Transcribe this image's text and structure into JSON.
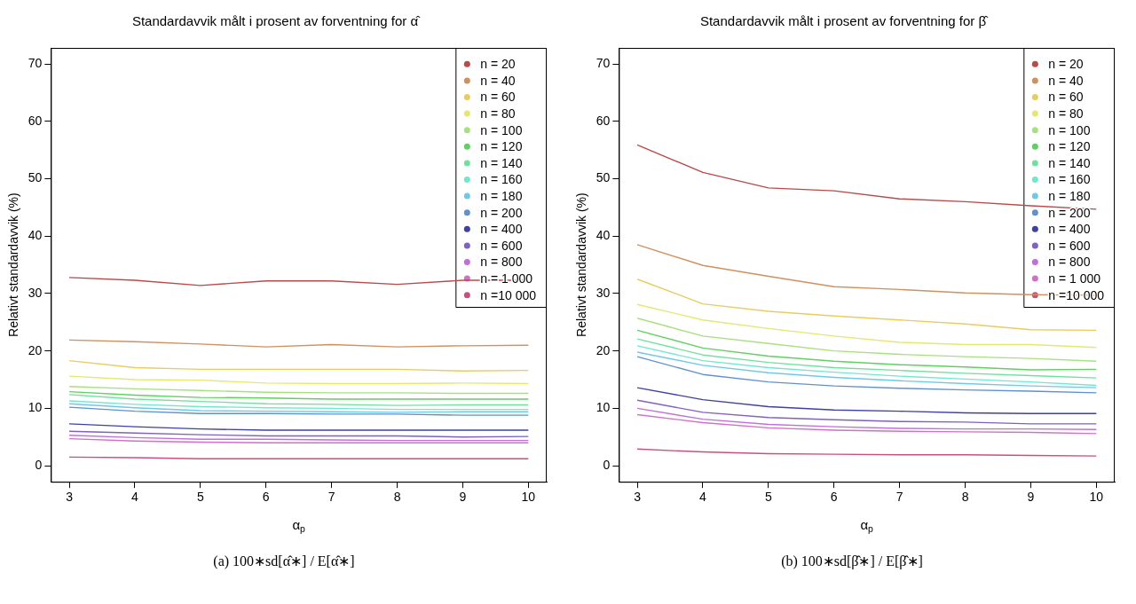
{
  "chart_data": [
    {
      "type": "line",
      "title": "Standardavvik målt i prosent av forventning for α̂",
      "xlabel": "α$_{p}$",
      "ylabel": "Relativt standardavvik (%)",
      "annotations": [
        "(a) 100∗sd[α̂∗] / E[α̂∗]"
      ],
      "x": [
        3,
        4,
        5,
        6,
        7,
        8,
        9,
        10
      ],
      "xlim": [
        2.72,
        10.28
      ],
      "xticks": [
        3,
        4,
        5,
        6,
        7,
        8,
        9,
        10
      ],
      "ylim": [
        -2.8,
        72.8
      ],
      "yticks": [
        0,
        10,
        20,
        30,
        40,
        50,
        60,
        70
      ],
      "grid": false,
      "legend": "top right",
      "marker": "none",
      "line_style": "solid",
      "series": [
        {
          "name": "n = 20",
          "color": "#b84a4a",
          "values": [
            32.8,
            32.3,
            31.4,
            32.2,
            32.2,
            31.6,
            32.3,
            32.3
          ]
        },
        {
          "name": "n = 40",
          "color": "#d09060",
          "values": [
            21.9,
            21.6,
            21.2,
            20.7,
            21.1,
            20.7,
            20.9,
            21.0
          ]
        },
        {
          "name": "n = 60",
          "color": "#e8cc60",
          "values": [
            18.3,
            17.1,
            16.8,
            16.8,
            16.8,
            16.8,
            16.5,
            16.6
          ]
        },
        {
          "name": "n = 80",
          "color": "#e4e870",
          "values": [
            15.6,
            15.0,
            14.9,
            14.4,
            14.3,
            14.3,
            14.4,
            14.3
          ]
        },
        {
          "name": "n = 100",
          "color": "#a8e080",
          "values": [
            13.8,
            13.4,
            13.1,
            12.8,
            12.7,
            12.7,
            12.6,
            12.6
          ]
        },
        {
          "name": "n = 120",
          "color": "#60d060",
          "values": [
            12.9,
            12.3,
            11.9,
            11.8,
            11.6,
            11.6,
            11.6,
            11.6
          ]
        },
        {
          "name": "n = 140",
          "color": "#70e0a0",
          "values": [
            12.4,
            11.6,
            11.2,
            10.8,
            10.7,
            10.5,
            10.6,
            10.6
          ]
        },
        {
          "name": "n = 160",
          "color": "#70e8d0",
          "values": [
            11.3,
            10.7,
            10.3,
            10.1,
            10.0,
            9.8,
            9.8,
            9.8
          ]
        },
        {
          "name": "n = 180",
          "color": "#70c8e8",
          "values": [
            10.8,
            10.1,
            9.6,
            9.5,
            9.4,
            9.3,
            9.4,
            9.4
          ]
        },
        {
          "name": "n = 200",
          "color": "#6090d0",
          "values": [
            10.2,
            9.5,
            9.1,
            9.1,
            9.0,
            9.0,
            8.8,
            8.8
          ]
        },
        {
          "name": "n = 400",
          "color": "#4040a0",
          "values": [
            7.3,
            6.8,
            6.4,
            6.2,
            6.2,
            6.2,
            6.2,
            6.2
          ]
        },
        {
          "name": "n = 600",
          "color": "#8060c0",
          "values": [
            6.0,
            5.7,
            5.4,
            5.2,
            5.2,
            5.2,
            5.0,
            5.1
          ]
        },
        {
          "name": "n = 800",
          "color": "#c070d8",
          "values": [
            5.3,
            4.9,
            4.6,
            4.6,
            4.5,
            4.4,
            4.4,
            4.4
          ]
        },
        {
          "name": "n = 1 000",
          "color": "#d070c8",
          "values": [
            4.7,
            4.3,
            4.1,
            4.0,
            4.0,
            4.0,
            4.0,
            4.0
          ]
        },
        {
          "name": "n =10 000",
          "color": "#c85080",
          "values": [
            1.5,
            1.4,
            1.2,
            1.2,
            1.2,
            1.2,
            1.2,
            1.2
          ]
        }
      ]
    },
    {
      "type": "line",
      "title": "Standardavvik målt i prosent av forventning for β̂",
      "xlabel": "α$_{p}$",
      "ylabel": "Relativt standardavvik (%)",
      "annotations": [
        "(b) 100∗sd[β̂∗] / E[β̂∗]"
      ],
      "x": [
        3,
        4,
        5,
        6,
        7,
        8,
        9,
        10
      ],
      "xlim": [
        2.72,
        10.28
      ],
      "xticks": [
        3,
        4,
        5,
        6,
        7,
        8,
        9,
        10
      ],
      "ylim": [
        -2.8,
        72.8
      ],
      "yticks": [
        0,
        10,
        20,
        30,
        40,
        50,
        60,
        70
      ],
      "grid": false,
      "legend": "top right",
      "marker": "none",
      "line_style": "solid",
      "series": [
        {
          "name": "n = 20",
          "color": "#b84a4a",
          "values": [
            55.9,
            51.1,
            48.4,
            47.9,
            46.5,
            46.0,
            45.3,
            44.7
          ]
        },
        {
          "name": "n = 40",
          "color": "#d09060",
          "values": [
            38.5,
            34.9,
            33.0,
            31.2,
            30.7,
            30.1,
            29.8,
            29.7
          ]
        },
        {
          "name": "n = 60",
          "color": "#e8cc60",
          "values": [
            32.5,
            28.2,
            26.9,
            26.1,
            25.4,
            24.7,
            23.7,
            23.6
          ]
        },
        {
          "name": "n = 80",
          "color": "#e4e870",
          "values": [
            28.1,
            25.4,
            23.9,
            22.6,
            21.5,
            21.1,
            21.1,
            20.6
          ]
        },
        {
          "name": "n = 100",
          "color": "#a8e080",
          "values": [
            25.7,
            22.6,
            21.3,
            20.0,
            19.4,
            19.0,
            18.7,
            18.2
          ]
        },
        {
          "name": "n = 120",
          "color": "#60d060",
          "values": [
            23.6,
            20.5,
            19.1,
            18.2,
            17.6,
            17.2,
            16.7,
            16.8
          ]
        },
        {
          "name": "n = 140",
          "color": "#70e0a0",
          "values": [
            22.1,
            19.3,
            18.0,
            17.1,
            16.6,
            16.1,
            15.7,
            15.3
          ]
        },
        {
          "name": "n = 160",
          "color": "#70e8d0",
          "values": [
            20.9,
            18.3,
            17.1,
            16.3,
            15.6,
            15.1,
            14.6,
            14.0
          ]
        },
        {
          "name": "n = 180",
          "color": "#70c8e8",
          "values": [
            19.8,
            17.5,
            16.2,
            15.4,
            14.8,
            14.3,
            13.9,
            13.6
          ]
        },
        {
          "name": "n = 200",
          "color": "#6090d0",
          "values": [
            19.0,
            15.9,
            14.6,
            13.9,
            13.5,
            13.2,
            13.0,
            12.7
          ]
        },
        {
          "name": "n = 400",
          "color": "#4040a0",
          "values": [
            13.6,
            11.5,
            10.3,
            9.7,
            9.5,
            9.2,
            9.1,
            9.1
          ]
        },
        {
          "name": "n = 600",
          "color": "#8060c0",
          "values": [
            11.4,
            9.3,
            8.4,
            8.0,
            7.7,
            7.6,
            7.3,
            7.3
          ]
        },
        {
          "name": "n = 800",
          "color": "#c070d8",
          "values": [
            10.0,
            8.1,
            7.2,
            6.8,
            6.5,
            6.4,
            6.4,
            6.3
          ]
        },
        {
          "name": "n = 1 000",
          "color": "#d070c8",
          "values": [
            8.9,
            7.5,
            6.6,
            6.2,
            6.0,
            5.9,
            5.8,
            5.6
          ]
        },
        {
          "name": "n =10 000",
          "color": "#c85080",
          "values": [
            2.9,
            2.4,
            2.1,
            2.0,
            1.9,
            1.9,
            1.8,
            1.7
          ]
        }
      ]
    }
  ]
}
